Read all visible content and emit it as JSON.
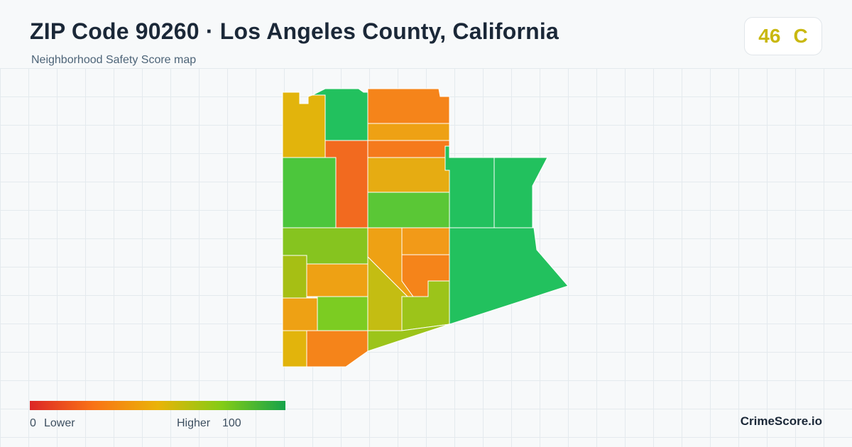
{
  "header": {
    "title": "ZIP Code 90260 · Los Angeles County, California",
    "subtitle": "Neighborhood Safety Score map"
  },
  "score": {
    "value": "46",
    "grade": "C",
    "color": "#c9b80f"
  },
  "legend": {
    "min_label": "0",
    "low_label": "Lower",
    "high_label": "Higher",
    "max_label": "100",
    "gradient_colors": [
      "#dc2626",
      "#f97316",
      "#eab308",
      "#84cc16",
      "#16a34a"
    ]
  },
  "brand": "CrimeScore.io",
  "colors": {
    "background": "#f7f9fa",
    "grid": "#e4eaee",
    "region_border": "#ffffff"
  }
}
